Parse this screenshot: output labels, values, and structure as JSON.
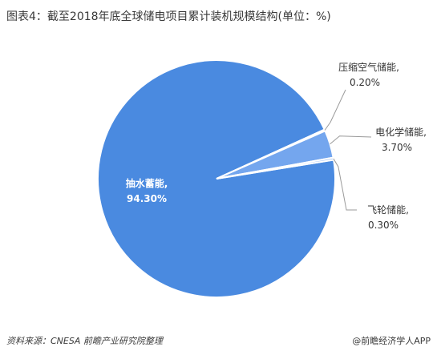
{
  "title": "图表4：截至2018年底全球储电项目累计装机规模结构(单位：%)",
  "source": "资料来源：CNESA 前瞻产业研究院整理",
  "brand": "@前瞻经济学人APP",
  "chart_data": {
    "type": "pie",
    "slices": [
      {
        "label": "抽水蓄能,",
        "value_label": "94.30%",
        "value": 94.3,
        "color": "#4a8ae0"
      },
      {
        "label": "压缩空气储能,",
        "value_label": "0.20%",
        "value": 0.2,
        "color": "#3d72c4"
      },
      {
        "label": "电化学储能,",
        "value_label": "3.70%",
        "value": 3.7,
        "color": "#74a6ee"
      },
      {
        "label": "飞轮储能,",
        "value_label": "0.30%",
        "value": 0.3,
        "color": "#a9c7f5"
      }
    ],
    "legend": "none",
    "label_color": "#333333",
    "leader_color": "#9a9a9a"
  }
}
